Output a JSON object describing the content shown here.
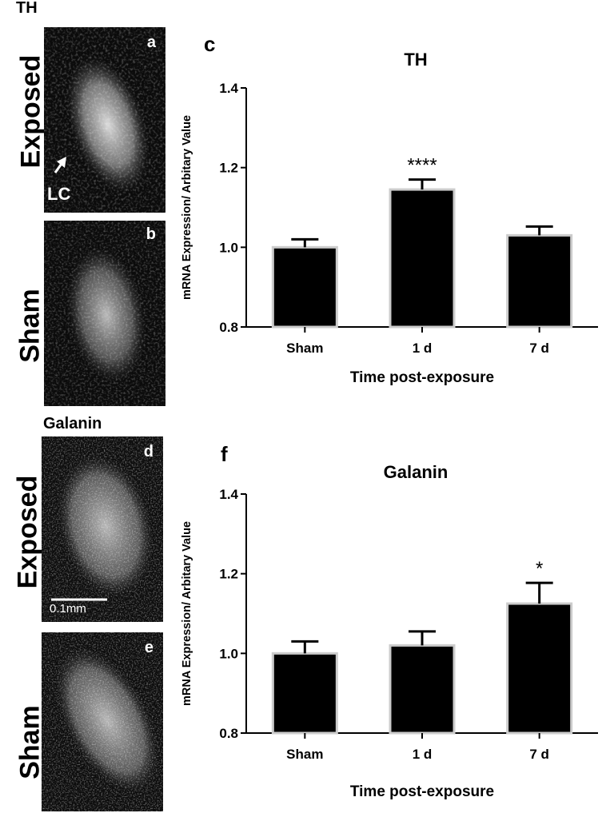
{
  "top_section_title": "TH",
  "bottom_section_title": "Galanin",
  "image_panels": [
    {
      "letter": "a",
      "side_label": "Exposed",
      "annotation": "LC"
    },
    {
      "letter": "b",
      "side_label": "Sham"
    },
    {
      "letter": "d",
      "side_label": "Exposed",
      "scalebar_label": "0.1mm"
    },
    {
      "letter": "e",
      "side_label": "Sham"
    }
  ],
  "colors": {
    "bar_fill": "#000000",
    "bar_outline": "#cccccc",
    "panel_bg": "#0b0b0b",
    "signal": "#e8e8e8"
  },
  "chart_data": [
    {
      "panel_letter": "c",
      "type": "bar",
      "title": "TH",
      "xlabel": "Time post-exposure",
      "ylabel": "mRNA Expression/ Arbitary Value",
      "categories": [
        "Sham",
        "1 d",
        "7 d"
      ],
      "values": [
        1.0,
        1.145,
        1.03
      ],
      "errors": [
        0.02,
        0.025,
        0.022
      ],
      "annotations": [
        "",
        "****",
        ""
      ],
      "ylim": [
        0.8,
        1.4
      ],
      "yticks": [
        "0.8",
        "1.0",
        "1.2",
        "1.4"
      ],
      "grid": false
    },
    {
      "panel_letter": "f",
      "type": "bar",
      "title": "Galanin",
      "xlabel": "Time post-exposure",
      "ylabel": "mRNA Expression/ Arbitary Value",
      "categories": [
        "Sham",
        "1 d",
        "7 d"
      ],
      "values": [
        1.0,
        1.02,
        1.125
      ],
      "errors": [
        0.03,
        0.035,
        0.052
      ],
      "annotations": [
        "",
        "",
        "*"
      ],
      "ylim": [
        0.8,
        1.4
      ],
      "yticks": [
        "0.8",
        "1.0",
        "1.2",
        "1.4"
      ],
      "grid": false
    }
  ]
}
